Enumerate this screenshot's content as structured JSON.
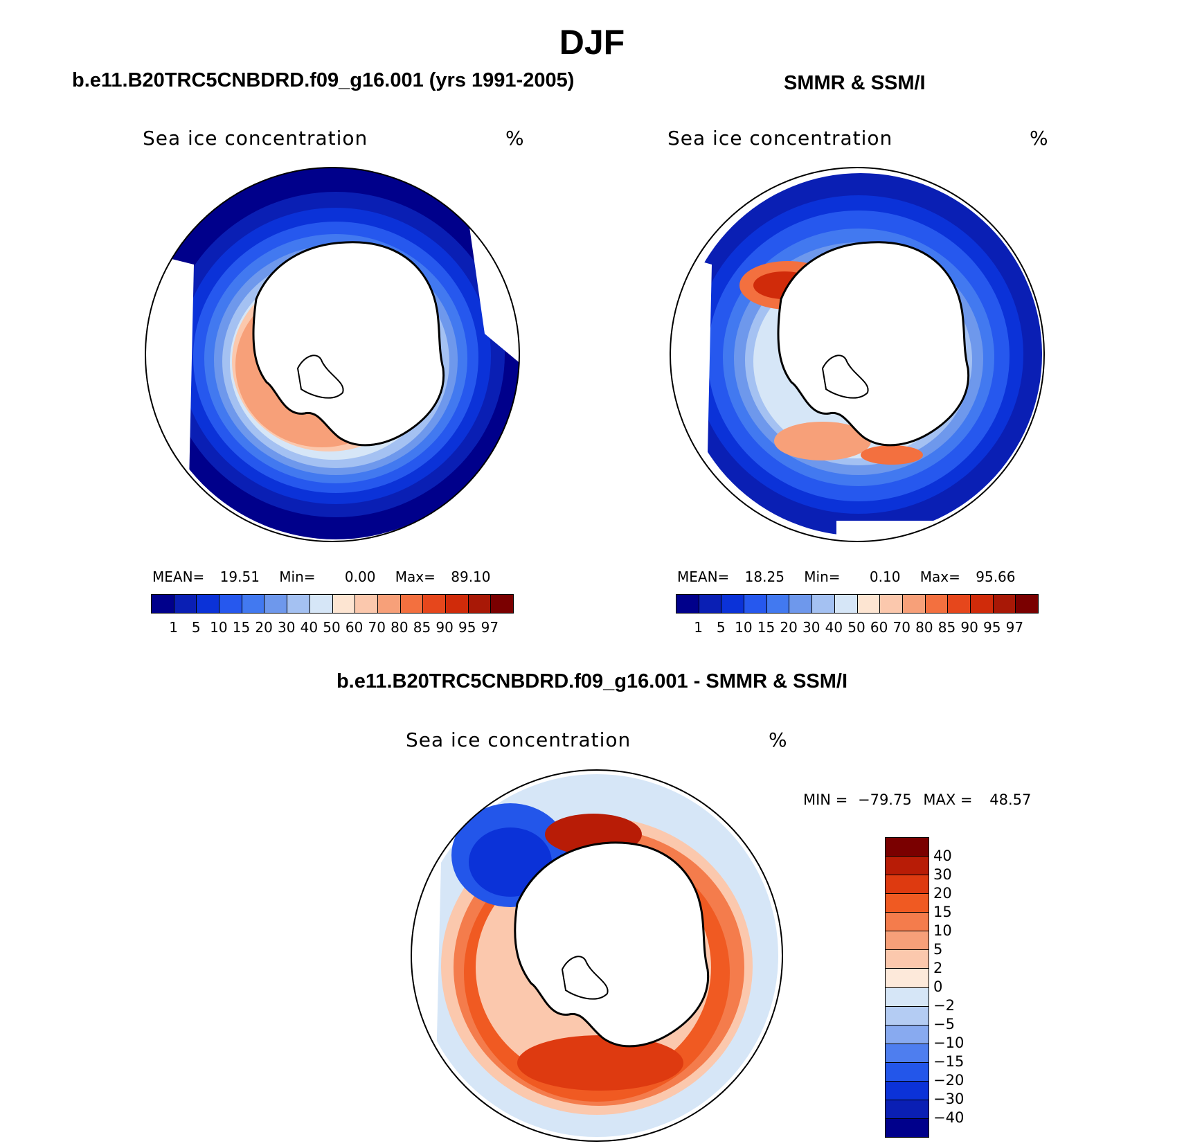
{
  "figure_title": "DJF",
  "panels": [
    {
      "subtitle": "b.e11.B20TRC5CNBDRD.f09_g16.001 (yrs 1991-2005)",
      "map_title": "Sea ice concentration",
      "units": "%",
      "stats": {
        "mean_label": "MEAN=",
        "mean": "19.51",
        "min_label": "Min=",
        "min": "0.00",
        "max_label": "Max=",
        "max": "89.10"
      }
    },
    {
      "subtitle": "SMMR & SSM/I",
      "map_title": "Sea ice concentration",
      "units": "%",
      "stats": {
        "mean_label": "MEAN=",
        "mean": "18.25",
        "min_label": "Min=",
        "min": "0.10",
        "max_label": "Max=",
        "max": "95.66"
      }
    },
    {
      "subtitle": "b.e11.B20TRC5CNBDRD.f09_g16.001 - SMMR & SSM/I",
      "map_title": "Sea ice concentration",
      "units": "%",
      "stats": {
        "min_label": "MIN =",
        "min": "−79.75",
        "max_label": "MAX =",
        "max": "48.57"
      }
    }
  ],
  "chart_data": [
    {
      "type": "heatmap",
      "title": "Sea ice concentration",
      "units": "%",
      "colorbar": {
        "orientation": "horizontal",
        "levels": [
          "1",
          "5",
          "10",
          "15",
          "20",
          "30",
          "40",
          "50",
          "60",
          "70",
          "80",
          "85",
          "90",
          "95",
          "97"
        ],
        "colors": [
          "#00008b",
          "#0a1fb4",
          "#0b32d8",
          "#2658ee",
          "#4279f0",
          "#6e98ec",
          "#a4c1f2",
          "#d6e6f7",
          "#fde5d2",
          "#fbc8ad",
          "#f7a079",
          "#f3703f",
          "#e6471c",
          "#d02b0a",
          "#a81806",
          "#7a0000"
        ]
      },
      "stats": {
        "mean": 19.51,
        "min": 0.0,
        "max": 89.1
      }
    },
    {
      "type": "heatmap",
      "title": "Sea ice concentration",
      "units": "%",
      "colorbar": {
        "orientation": "horizontal",
        "levels": [
          "1",
          "5",
          "10",
          "15",
          "20",
          "30",
          "40",
          "50",
          "60",
          "70",
          "80",
          "85",
          "90",
          "95",
          "97"
        ],
        "colors": [
          "#00008b",
          "#0a1fb4",
          "#0b32d8",
          "#2658ee",
          "#4279f0",
          "#6e98ec",
          "#a4c1f2",
          "#d6e6f7",
          "#fde5d2",
          "#fbc8ad",
          "#f7a079",
          "#f3703f",
          "#e6471c",
          "#d02b0a",
          "#a81806",
          "#7a0000"
        ]
      },
      "stats": {
        "mean": 18.25,
        "min": 0.1,
        "max": 95.66
      }
    },
    {
      "type": "heatmap",
      "title": "Sea ice concentration",
      "units": "%",
      "colorbar": {
        "orientation": "vertical",
        "levels": [
          "40",
          "30",
          "20",
          "15",
          "10",
          "5",
          "2",
          "0",
          "−2",
          "−5",
          "−10",
          "−15",
          "−20",
          "−30",
          "−40"
        ],
        "colors": [
          "#7a0000",
          "#b81c06",
          "#de3a10",
          "#f05a22",
          "#f47c4c",
          "#f7a079",
          "#fbc8ad",
          "#fde9da",
          "#d6e6f7",
          "#b4ccf3",
          "#88aaf0",
          "#4e7eef",
          "#2356ea",
          "#0b32d8",
          "#0a1fb4",
          "#00008b"
        ]
      },
      "stats": {
        "min": -79.75,
        "max": 48.57
      }
    }
  ]
}
